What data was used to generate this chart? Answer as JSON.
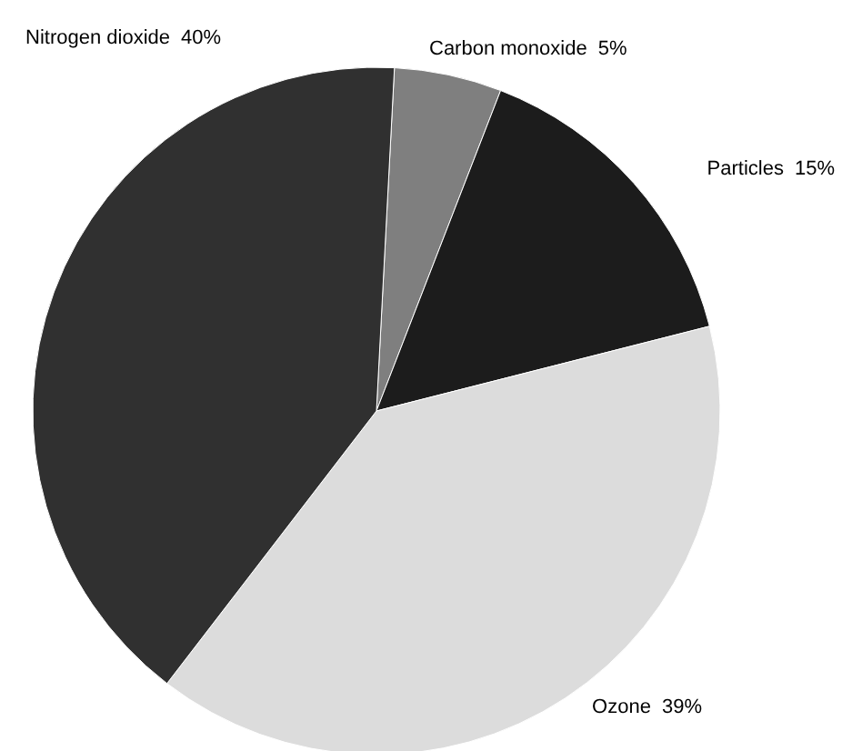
{
  "chart_data": {
    "type": "pie",
    "categories": [
      "Carbon monoxide",
      "Particles",
      "Ozone",
      "Nitrogen dioxide"
    ],
    "values": [
      5,
      15,
      39,
      40
    ],
    "value_labels": [
      "5%",
      "15%",
      "39%",
      "40%"
    ],
    "colors": [
      "#7f7f7f",
      "#1c1c1c",
      "#dcdcdc",
      "#303030"
    ]
  }
}
